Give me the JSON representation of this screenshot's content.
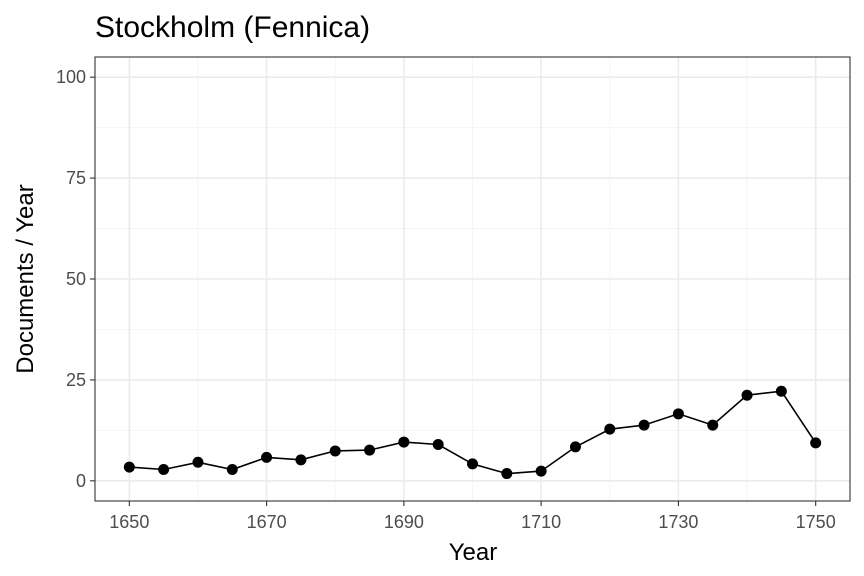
{
  "chart_data": {
    "type": "line",
    "title": "Stockholm (Fennica)",
    "xlabel": "Year",
    "ylabel": "Documents / Year",
    "xlim": [
      1645,
      1755
    ],
    "ylim": [
      -5,
      105
    ],
    "x_ticks": [
      1650,
      1670,
      1690,
      1710,
      1730,
      1750
    ],
    "y_ticks": [
      0,
      25,
      50,
      75,
      100
    ],
    "x_minor_ticks": [
      1660,
      1680,
      1700,
      1720,
      1740
    ],
    "y_minor_ticks": [
      12.5,
      37.5,
      62.5,
      87.5
    ],
    "grid": true,
    "legend": "none",
    "colors": {
      "line": "#000000",
      "points": "#000000",
      "grid_major": "#ebebeb",
      "grid_minor": "#f5f5f5",
      "panel_border": "#333333"
    },
    "series": [
      {
        "x": [
          1650,
          1655,
          1660,
          1665,
          1670,
          1675,
          1680,
          1685,
          1690,
          1695,
          1700,
          1705,
          1710,
          1715,
          1720,
          1725,
          1730,
          1735,
          1740,
          1745,
          1750
        ],
        "values": [
          3.4,
          2.8,
          4.6,
          2.8,
          5.8,
          5.2,
          7.4,
          7.6,
          9.6,
          9.0,
          4.2,
          1.8,
          2.4,
          8.4,
          12.8,
          13.8,
          16.6,
          13.8,
          21.2,
          22.2,
          9.4
        ]
      }
    ]
  }
}
